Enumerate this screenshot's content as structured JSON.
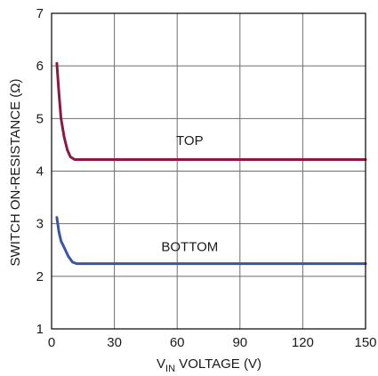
{
  "chart_data": {
    "type": "line",
    "title": "",
    "xlabel_main": "V",
    "xlabel_sub": "IN",
    "xlabel_rest": " VOLTAGE (V)",
    "ylabel": "SWITCH ON-RESISTANCE (Ω)",
    "xlim": [
      0,
      150
    ],
    "ylim": [
      1,
      7
    ],
    "xticks": [
      "0",
      "30",
      "60",
      "90",
      "120",
      "150"
    ],
    "yticks": [
      "1",
      "2",
      "3",
      "4",
      "5",
      "6",
      "7"
    ],
    "grid": true,
    "series": [
      {
        "name": "TOP",
        "color": "#8b1a3c",
        "x": [
          2.5,
          3.5,
          4.5,
          6,
          7.5,
          9,
          11,
          14,
          20,
          150
        ],
        "y": [
          6.05,
          5.5,
          5.0,
          4.65,
          4.4,
          4.27,
          4.22,
          4.22,
          4.22,
          4.22
        ]
      },
      {
        "name": "BOTTOM",
        "color": "#3a55a4",
        "x": [
          2.5,
          3.5,
          4.5,
          6,
          8,
          10,
          12,
          16,
          150
        ],
        "y": [
          3.12,
          2.85,
          2.67,
          2.55,
          2.38,
          2.27,
          2.24,
          2.24,
          2.24
        ]
      }
    ],
    "annotations": [
      {
        "text": "TOP",
        "x": 66,
        "y": 4.5
      },
      {
        "text": "BOTTOM",
        "x": 66,
        "y": 2.48
      }
    ]
  }
}
